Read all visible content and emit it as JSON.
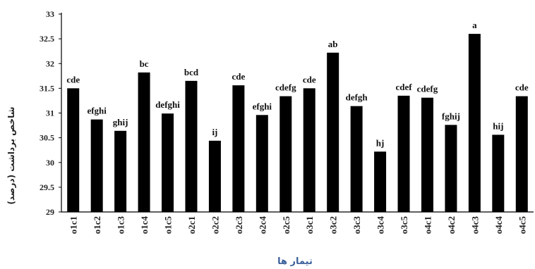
{
  "chart_data": {
    "type": "bar",
    "xlabel": "تیمار ها",
    "ylabel": "شاخص برداشت (درصد)",
    "ylim": [
      29,
      33
    ],
    "yticks": [
      29,
      29.5,
      30,
      30.5,
      31,
      31.5,
      32,
      32.5,
      33
    ],
    "grid": false,
    "legend": "none",
    "bar_color": "#000000",
    "categories": [
      "o1c1",
      "o1c2",
      "o1c3",
      "o1c4",
      "o1c5",
      "o2c1",
      "o2c2",
      "o2c3",
      "o2c4",
      "o2c5",
      "o3c1",
      "o3c2",
      "o3c3",
      "o3c4",
      "o3c5",
      "o4c1",
      "o4c2",
      "o4c3",
      "o4c4",
      "o4c5"
    ],
    "values": [
      31.5,
      30.87,
      30.64,
      31.82,
      30.99,
      31.65,
      30.44,
      31.56,
      30.96,
      31.34,
      31.5,
      32.22,
      31.14,
      30.22,
      31.35,
      31.31,
      30.76,
      32.6,
      30.56,
      31.34
    ],
    "data_labels": [
      "cde",
      "efghi",
      "ghij",
      "bc",
      "defghi",
      "bcd",
      "ij",
      "cde",
      "efghi",
      "cdefg",
      "cde",
      "ab",
      "defgh",
      "hj",
      "cdef",
      "cdefg",
      "fghij",
      "a",
      "hij",
      "cde"
    ]
  }
}
